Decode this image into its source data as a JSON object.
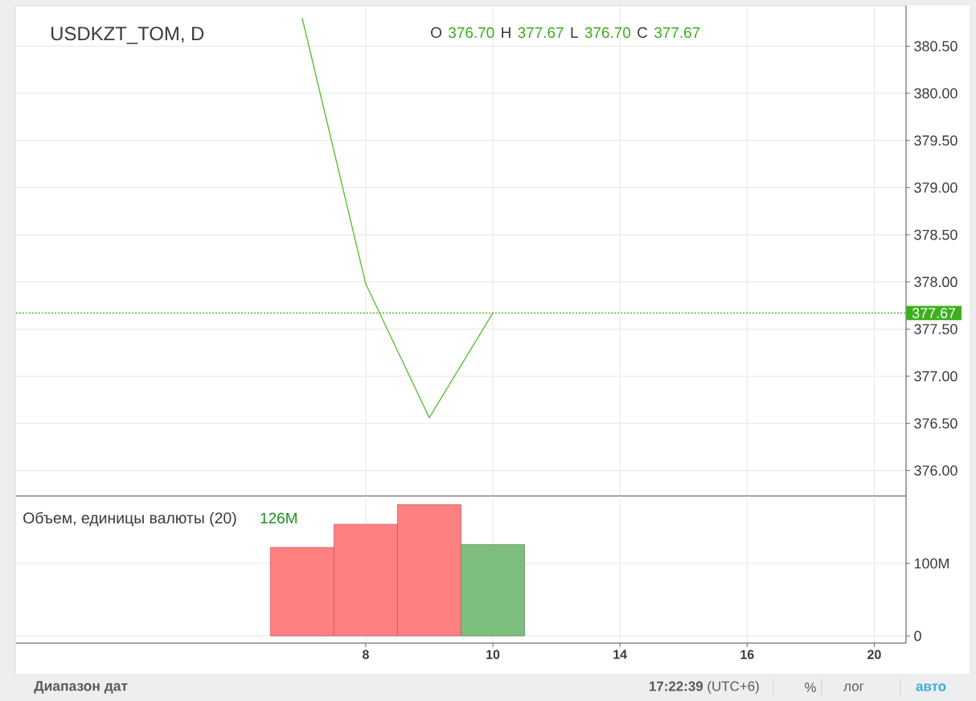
{
  "chart_data": [
    {
      "type": "line",
      "title": "USDKZT_TOM, D",
      "categories": [
        null,
        null,
        null,
        null,
        null,
        "8",
        null,
        "10",
        null,
        "14",
        null,
        "16",
        null,
        "20"
      ],
      "series": [
        {
          "color": "#5cc13c",
          "values": [
            null,
            null,
            null,
            null,
            380.8,
            377.98,
            376.56,
            377.67,
            null,
            null,
            null,
            null,
            null,
            null
          ]
        }
      ],
      "ylim": [
        375.73,
        380.93
      ],
      "yticks": [
        {
          "value": 376.0,
          "label": "376.00"
        },
        {
          "value": 376.5,
          "label": "376.50"
        },
        {
          "value": 377.0,
          "label": "377.00"
        },
        {
          "value": 377.5,
          "label": "377.50"
        },
        {
          "value": 378.0,
          "label": "378.00"
        },
        {
          "value": 378.5,
          "label": "378.50"
        },
        {
          "value": 379.0,
          "label": "379.00"
        },
        {
          "value": 379.5,
          "label": "379.50"
        },
        {
          "value": 380.0,
          "label": "380.00"
        },
        {
          "value": 380.5,
          "label": "380.50"
        }
      ],
      "ref_lines": [
        {
          "axis": "y",
          "value": 377.67,
          "label": "377.67",
          "color": "#3cb01c",
          "line_style": "dotted"
        }
      ],
      "annotations": [
        "O",
        "376.70",
        "H",
        "377.67",
        "L",
        "376.70",
        "C",
        "377.67"
      ],
      "grid": true,
      "tick_labels": "y"
    },
    {
      "type": "bar",
      "title": "Объем, единицы валюты (20)",
      "categories": [
        null,
        null,
        null,
        null,
        null,
        "8",
        null,
        "10",
        null,
        "14",
        null,
        "16",
        null,
        "20"
      ],
      "values": [
        null,
        null,
        null,
        null,
        122,
        154,
        181,
        126,
        null,
        null,
        null,
        null,
        null,
        null
      ],
      "colors": [
        null,
        null,
        null,
        null,
        "#ff8080",
        "#ff8080",
        "#ff8080",
        "#7dbe7d",
        null,
        null,
        null,
        null,
        null,
        null
      ],
      "ylim": [
        -10,
        193
      ],
      "yticks": [
        0,
        {
          "value": 100,
          "label": "100M"
        }
      ],
      "annotations": [
        "126M",
        "Диапазон дат",
        "**17:22:39** (UTC+6)",
        "%",
        "лог",
        "авто"
      ],
      "grid": true
    }
  ]
}
